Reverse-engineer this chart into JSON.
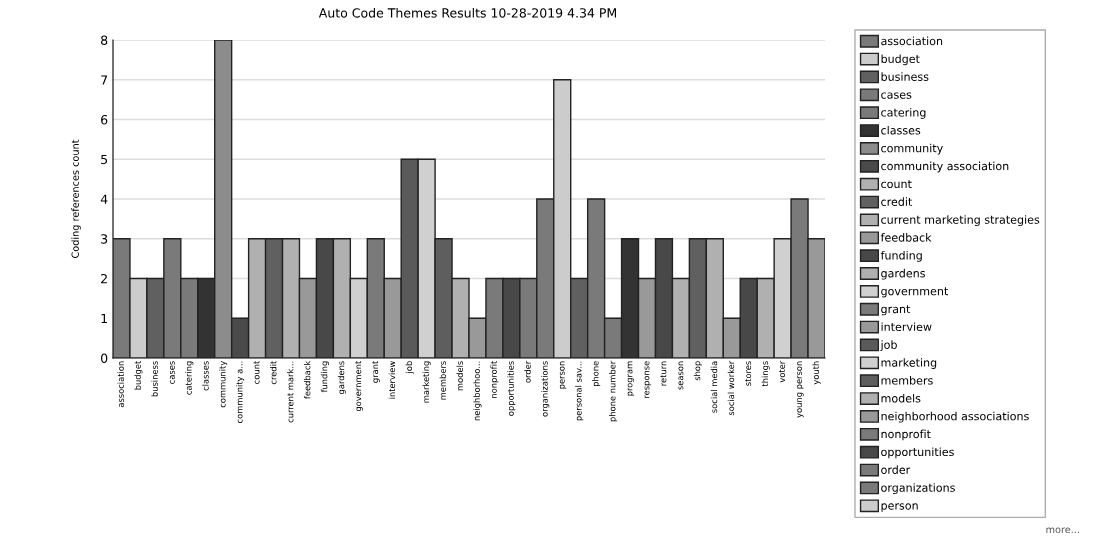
{
  "chart_data": {
    "type": "bar",
    "title": "Auto Code Themes Results 10-28-2019 4.34 PM",
    "ylabel": "Coding references count",
    "categories": [
      "association",
      "budget",
      "business",
      "cases",
      "catering",
      "classes",
      "community",
      "community a...",
      "count",
      "credit",
      "current mark...",
      "feedback",
      "funding",
      "gardens",
      "government",
      "grant",
      "interview",
      "job",
      "marketing",
      "members",
      "models",
      "neighborhoo...",
      "nonprofit",
      "opportunities",
      "order",
      "organizations",
      "person",
      "personal sav...",
      "phone",
      "phone number",
      "program",
      "response",
      "return",
      "season",
      "shop",
      "social media",
      "social worker",
      "stores",
      "things",
      "voter",
      "young person",
      "youth"
    ],
    "series": [
      {
        "name": "association",
        "color": "#7a7a7a",
        "values": [
          3,
          null,
          null,
          null,
          null,
          null,
          null,
          null,
          null,
          null,
          null,
          null,
          null,
          null,
          null,
          null,
          null,
          null,
          null,
          null,
          null,
          null,
          null,
          null,
          null,
          null,
          null,
          null,
          null,
          null,
          null,
          null,
          null,
          null,
          null,
          null,
          null,
          null,
          null,
          null,
          null,
          null
        ]
      },
      {
        "name": "budget",
        "color": "#cccccc",
        "values": [
          null,
          2,
          null,
          null,
          null,
          null,
          null,
          null,
          null,
          null,
          null,
          null,
          null,
          null,
          null,
          null,
          null,
          null,
          null,
          null,
          null,
          null,
          null,
          null,
          null,
          null,
          null,
          null,
          null,
          null,
          null,
          null,
          null,
          null,
          null,
          null,
          null,
          null,
          null,
          null,
          null,
          null
        ]
      },
      {
        "name": "business",
        "color": "#606060",
        "values": [
          null,
          null,
          2,
          null,
          null,
          null,
          null,
          null,
          null,
          null,
          null,
          null,
          null,
          null,
          null,
          null,
          null,
          null,
          null,
          null,
          null,
          null,
          null,
          null,
          null,
          null,
          null,
          null,
          null,
          null,
          null,
          null,
          null,
          null,
          null,
          null,
          null,
          null,
          null,
          null,
          null,
          null
        ]
      },
      {
        "name": "cases",
        "color": "#7a7a7a",
        "values": [
          null,
          null,
          null,
          3,
          null,
          null,
          null,
          null,
          null,
          null,
          null,
          null,
          null,
          null,
          null,
          null,
          null,
          null,
          null,
          null,
          null,
          null,
          null,
          null,
          null,
          null,
          null,
          null,
          null,
          null,
          null,
          null,
          null,
          null,
          null,
          null,
          null,
          null,
          null,
          null,
          null,
          null
        ]
      },
      {
        "name": "catering",
        "color": "#7a7a7a",
        "values": [
          null,
          null,
          null,
          null,
          2,
          null,
          null,
          null,
          null,
          null,
          null,
          null,
          null,
          null,
          null,
          null,
          null,
          null,
          null,
          null,
          null,
          null,
          null,
          null,
          null,
          null,
          null,
          null,
          null,
          null,
          null,
          null,
          null,
          null,
          null,
          null,
          null,
          null,
          null,
          null,
          null,
          null
        ]
      },
      {
        "name": "classes",
        "color": "#333333",
        "values": [
          null,
          null,
          null,
          null,
          null,
          2,
          null,
          null,
          null,
          null,
          null,
          null,
          null,
          null,
          null,
          null,
          null,
          null,
          null,
          null,
          null,
          null,
          null,
          null,
          null,
          null,
          null,
          null,
          null,
          null,
          null,
          null,
          null,
          null,
          null,
          null,
          null,
          null,
          null,
          null,
          null,
          null
        ]
      },
      {
        "name": "community",
        "color": "#8c8c8c",
        "values": [
          null,
          null,
          null,
          null,
          null,
          null,
          8,
          null,
          null,
          null,
          null,
          null,
          null,
          null,
          null,
          null,
          null,
          null,
          null,
          null,
          null,
          null,
          null,
          null,
          null,
          null,
          null,
          null,
          null,
          null,
          null,
          null,
          null,
          null,
          null,
          null,
          null,
          null,
          null,
          null,
          null,
          null
        ]
      },
      {
        "name": "community association",
        "color": "#4a4a4a",
        "values": [
          null,
          null,
          null,
          null,
          null,
          null,
          null,
          1,
          null,
          null,
          null,
          null,
          null,
          null,
          null,
          null,
          null,
          null,
          null,
          null,
          null,
          null,
          null,
          null,
          null,
          null,
          null,
          null,
          null,
          null,
          null,
          null,
          null,
          null,
          null,
          null,
          null,
          null,
          null,
          null,
          null,
          null
        ]
      },
      {
        "name": "count",
        "color": "#b0b0b0",
        "values": [
          null,
          null,
          null,
          null,
          null,
          null,
          null,
          null,
          3,
          null,
          null,
          null,
          null,
          null,
          null,
          null,
          null,
          null,
          null,
          null,
          null,
          null,
          null,
          null,
          null,
          null,
          null,
          null,
          null,
          null,
          null,
          null,
          null,
          null,
          null,
          null,
          null,
          null,
          null,
          null,
          null,
          null
        ]
      },
      {
        "name": "credit",
        "color": "#606060",
        "values": [
          null,
          null,
          null,
          null,
          null,
          null,
          null,
          null,
          null,
          3,
          null,
          null,
          null,
          null,
          null,
          null,
          null,
          null,
          null,
          null,
          null,
          null,
          null,
          null,
          null,
          null,
          null,
          null,
          null,
          null,
          null,
          null,
          null,
          null,
          null,
          null,
          null,
          null,
          null,
          null,
          null,
          null
        ]
      },
      {
        "name": "current marketing strategies",
        "color": "#b0b0b0",
        "values": [
          null,
          null,
          null,
          null,
          null,
          null,
          null,
          null,
          null,
          null,
          3,
          null,
          null,
          null,
          null,
          null,
          null,
          null,
          null,
          null,
          null,
          null,
          null,
          null,
          null,
          null,
          null,
          null,
          null,
          null,
          null,
          null,
          null,
          null,
          null,
          null,
          null,
          null,
          null,
          null,
          null,
          null
        ]
      },
      {
        "name": "feedback",
        "color": "#999999",
        "values": [
          null,
          null,
          null,
          null,
          null,
          null,
          null,
          null,
          null,
          null,
          null,
          2,
          null,
          null,
          null,
          null,
          null,
          null,
          null,
          null,
          null,
          null,
          null,
          null,
          null,
          null,
          null,
          null,
          null,
          null,
          null,
          null,
          null,
          null,
          null,
          null,
          null,
          null,
          null,
          null,
          null,
          null
        ]
      },
      {
        "name": "funding",
        "color": "#484848",
        "values": [
          null,
          null,
          null,
          null,
          null,
          null,
          null,
          null,
          null,
          null,
          null,
          null,
          3,
          null,
          null,
          null,
          null,
          null,
          null,
          null,
          null,
          null,
          null,
          null,
          null,
          null,
          null,
          null,
          null,
          null,
          null,
          null,
          null,
          null,
          null,
          null,
          null,
          null,
          null,
          null,
          null,
          null
        ]
      },
      {
        "name": "gardens",
        "color": "#b0b0b0",
        "values": [
          null,
          null,
          null,
          null,
          null,
          null,
          null,
          null,
          null,
          null,
          null,
          null,
          null,
          3,
          null,
          null,
          null,
          null,
          null,
          null,
          null,
          null,
          null,
          null,
          null,
          null,
          null,
          null,
          null,
          null,
          null,
          null,
          null,
          null,
          null,
          null,
          null,
          null,
          null,
          null,
          null,
          null
        ]
      },
      {
        "name": "government",
        "color": "#d0d0d0",
        "values": [
          null,
          null,
          null,
          null,
          null,
          null,
          null,
          null,
          null,
          null,
          null,
          null,
          null,
          null,
          2,
          null,
          null,
          null,
          null,
          null,
          null,
          null,
          null,
          null,
          null,
          null,
          null,
          null,
          null,
          null,
          null,
          null,
          null,
          null,
          null,
          null,
          null,
          null,
          null,
          null,
          null,
          null
        ]
      },
      {
        "name": "grant",
        "color": "#7a7a7a",
        "values": [
          null,
          null,
          null,
          null,
          null,
          null,
          null,
          null,
          null,
          null,
          null,
          null,
          null,
          null,
          null,
          3,
          null,
          null,
          null,
          null,
          null,
          null,
          null,
          null,
          null,
          null,
          null,
          null,
          null,
          null,
          null,
          null,
          null,
          null,
          null,
          null,
          null,
          null,
          null,
          null,
          null,
          null
        ]
      },
      {
        "name": "interview",
        "color": "#999999",
        "values": [
          null,
          null,
          null,
          null,
          null,
          null,
          null,
          null,
          null,
          null,
          null,
          null,
          null,
          null,
          null,
          null,
          2,
          null,
          null,
          null,
          null,
          null,
          null,
          null,
          null,
          null,
          null,
          null,
          null,
          null,
          null,
          null,
          null,
          null,
          null,
          null,
          null,
          null,
          null,
          null,
          null,
          null
        ]
      },
      {
        "name": "job",
        "color": "#5a5a5a",
        "values": [
          null,
          null,
          null,
          null,
          null,
          null,
          null,
          null,
          null,
          null,
          null,
          null,
          null,
          null,
          null,
          null,
          null,
          5,
          null,
          null,
          null,
          null,
          null,
          null,
          null,
          null,
          null,
          null,
          null,
          null,
          null,
          null,
          null,
          null,
          null,
          null,
          null,
          null,
          null,
          null,
          null,
          null
        ]
      },
      {
        "name": "marketing",
        "color": "#d0d0d0",
        "values": [
          null,
          null,
          null,
          null,
          null,
          null,
          null,
          null,
          null,
          null,
          null,
          null,
          null,
          null,
          null,
          null,
          null,
          null,
          5,
          null,
          null,
          null,
          null,
          null,
          null,
          null,
          null,
          null,
          null,
          null,
          null,
          null,
          null,
          null,
          null,
          null,
          null,
          null,
          null,
          null,
          null,
          null
        ]
      },
      {
        "name": "members",
        "color": "#5e5e5e",
        "values": [
          null,
          null,
          null,
          null,
          null,
          null,
          null,
          null,
          null,
          null,
          null,
          null,
          null,
          null,
          null,
          null,
          null,
          null,
          null,
          3,
          null,
          null,
          null,
          null,
          null,
          null,
          null,
          null,
          null,
          null,
          null,
          null,
          null,
          null,
          null,
          null,
          null,
          null,
          null,
          null,
          null,
          null
        ]
      },
      {
        "name": "models",
        "color": "#b0b0b0",
        "values": [
          null,
          null,
          null,
          null,
          null,
          null,
          null,
          null,
          null,
          null,
          null,
          null,
          null,
          null,
          null,
          null,
          null,
          null,
          null,
          null,
          2,
          null,
          null,
          null,
          null,
          null,
          null,
          null,
          null,
          null,
          null,
          null,
          null,
          null,
          null,
          null,
          null,
          null,
          null,
          null,
          null,
          null
        ]
      },
      {
        "name": "neighborhood associations",
        "color": "#999999",
        "values": [
          null,
          null,
          null,
          null,
          null,
          null,
          null,
          null,
          null,
          null,
          null,
          null,
          null,
          null,
          null,
          null,
          null,
          null,
          null,
          null,
          null,
          1,
          null,
          null,
          null,
          null,
          null,
          null,
          null,
          null,
          null,
          null,
          null,
          null,
          null,
          null,
          null,
          null,
          null,
          null,
          null,
          null
        ]
      },
      {
        "name": "nonprofit",
        "color": "#7a7a7a",
        "values": [
          null,
          null,
          null,
          null,
          null,
          null,
          null,
          null,
          null,
          null,
          null,
          null,
          null,
          null,
          null,
          null,
          null,
          null,
          null,
          null,
          null,
          null,
          2,
          null,
          null,
          null,
          null,
          null,
          null,
          null,
          null,
          null,
          null,
          null,
          null,
          null,
          null,
          null,
          null,
          null,
          null,
          null
        ]
      },
      {
        "name": "opportunities",
        "color": "#484848",
        "values": [
          null,
          null,
          null,
          null,
          null,
          null,
          null,
          null,
          null,
          null,
          null,
          null,
          null,
          null,
          null,
          null,
          null,
          null,
          null,
          null,
          null,
          null,
          null,
          2,
          null,
          null,
          null,
          null,
          null,
          null,
          null,
          null,
          null,
          null,
          null,
          null,
          null,
          null,
          null,
          null,
          null,
          null
        ]
      },
      {
        "name": "order",
        "color": "#7a7a7a",
        "values": [
          null,
          null,
          null,
          null,
          null,
          null,
          null,
          null,
          null,
          null,
          null,
          null,
          null,
          null,
          null,
          null,
          null,
          null,
          null,
          null,
          null,
          null,
          null,
          null,
          2,
          null,
          null,
          null,
          null,
          null,
          null,
          null,
          null,
          null,
          null,
          null,
          null,
          null,
          null,
          null,
          null,
          null
        ]
      },
      {
        "name": "organizations",
        "color": "#7a7a7a",
        "values": [
          null,
          null,
          null,
          null,
          null,
          null,
          null,
          null,
          null,
          null,
          null,
          null,
          null,
          null,
          null,
          null,
          null,
          null,
          null,
          null,
          null,
          null,
          null,
          null,
          null,
          4,
          null,
          null,
          null,
          null,
          null,
          null,
          null,
          null,
          null,
          null,
          null,
          null,
          null,
          null,
          null,
          null
        ]
      },
      {
        "name": "person",
        "color": "#cccccc",
        "values": [
          null,
          null,
          null,
          null,
          null,
          null,
          null,
          null,
          null,
          null,
          null,
          null,
          null,
          null,
          null,
          null,
          null,
          null,
          null,
          null,
          null,
          null,
          null,
          null,
          null,
          null,
          7,
          null,
          null,
          null,
          null,
          null,
          null,
          null,
          null,
          null,
          null,
          null,
          null,
          null,
          null,
          null
        ]
      },
      {
        "color": "#606060",
        "values": [
          null,
          null,
          null,
          null,
          null,
          null,
          null,
          null,
          null,
          null,
          null,
          null,
          null,
          null,
          null,
          null,
          null,
          null,
          null,
          null,
          null,
          null,
          null,
          null,
          null,
          null,
          null,
          2,
          null,
          null,
          null,
          null,
          null,
          null,
          null,
          null,
          null,
          null,
          null,
          null,
          null,
          null
        ]
      },
      {
        "color": "#7a7a7a",
        "values": [
          null,
          null,
          null,
          null,
          null,
          null,
          null,
          null,
          null,
          null,
          null,
          null,
          null,
          null,
          null,
          null,
          null,
          null,
          null,
          null,
          null,
          null,
          null,
          null,
          null,
          null,
          null,
          null,
          4,
          null,
          null,
          null,
          null,
          null,
          null,
          null,
          null,
          null,
          null,
          null,
          null,
          null
        ]
      },
      {
        "color": "#7a7a7a",
        "values": [
          null,
          null,
          null,
          null,
          null,
          null,
          null,
          null,
          null,
          null,
          null,
          null,
          null,
          null,
          null,
          null,
          null,
          null,
          null,
          null,
          null,
          null,
          null,
          null,
          null,
          null,
          null,
          null,
          null,
          1,
          null,
          null,
          null,
          null,
          null,
          null,
          null,
          null,
          null,
          null,
          null,
          null
        ]
      },
      {
        "color": "#333333",
        "values": [
          null,
          null,
          null,
          null,
          null,
          null,
          null,
          null,
          null,
          null,
          null,
          null,
          null,
          null,
          null,
          null,
          null,
          null,
          null,
          null,
          null,
          null,
          null,
          null,
          null,
          null,
          null,
          null,
          null,
          null,
          3,
          null,
          null,
          null,
          null,
          null,
          null,
          null,
          null,
          null,
          null,
          null
        ]
      },
      {
        "color": "#999999",
        "values": [
          null,
          null,
          null,
          null,
          null,
          null,
          null,
          null,
          null,
          null,
          null,
          null,
          null,
          null,
          null,
          null,
          null,
          null,
          null,
          null,
          null,
          null,
          null,
          null,
          null,
          null,
          null,
          null,
          null,
          null,
          null,
          2,
          null,
          null,
          null,
          null,
          null,
          null,
          null,
          null,
          null,
          null
        ]
      },
      {
        "color": "#484848",
        "values": [
          null,
          null,
          null,
          null,
          null,
          null,
          null,
          null,
          null,
          null,
          null,
          null,
          null,
          null,
          null,
          null,
          null,
          null,
          null,
          null,
          null,
          null,
          null,
          null,
          null,
          null,
          null,
          null,
          null,
          null,
          null,
          null,
          3,
          null,
          null,
          null,
          null,
          null,
          null,
          null,
          null,
          null
        ]
      },
      {
        "color": "#b0b0b0",
        "values": [
          null,
          null,
          null,
          null,
          null,
          null,
          null,
          null,
          null,
          null,
          null,
          null,
          null,
          null,
          null,
          null,
          null,
          null,
          null,
          null,
          null,
          null,
          null,
          null,
          null,
          null,
          null,
          null,
          null,
          null,
          null,
          null,
          null,
          2,
          null,
          null,
          null,
          null,
          null,
          null,
          null,
          null
        ]
      },
      {
        "color": "#606060",
        "values": [
          null,
          null,
          null,
          null,
          null,
          null,
          null,
          null,
          null,
          null,
          null,
          null,
          null,
          null,
          null,
          null,
          null,
          null,
          null,
          null,
          null,
          null,
          null,
          null,
          null,
          null,
          null,
          null,
          null,
          null,
          null,
          null,
          null,
          null,
          3,
          null,
          null,
          null,
          null,
          null,
          null,
          null
        ]
      },
      {
        "color": "#b0b0b0",
        "values": [
          null,
          null,
          null,
          null,
          null,
          null,
          null,
          null,
          null,
          null,
          null,
          null,
          null,
          null,
          null,
          null,
          null,
          null,
          null,
          null,
          null,
          null,
          null,
          null,
          null,
          null,
          null,
          null,
          null,
          null,
          null,
          null,
          null,
          null,
          null,
          3,
          null,
          null,
          null,
          null,
          null,
          null
        ]
      },
      {
        "color": "#999999",
        "values": [
          null,
          null,
          null,
          null,
          null,
          null,
          null,
          null,
          null,
          null,
          null,
          null,
          null,
          null,
          null,
          null,
          null,
          null,
          null,
          null,
          null,
          null,
          null,
          null,
          null,
          null,
          null,
          null,
          null,
          null,
          null,
          null,
          null,
          null,
          null,
          null,
          1,
          null,
          null,
          null,
          null,
          null
        ]
      },
      {
        "color": "#484848",
        "values": [
          null,
          null,
          null,
          null,
          null,
          null,
          null,
          null,
          null,
          null,
          null,
          null,
          null,
          null,
          null,
          null,
          null,
          null,
          null,
          null,
          null,
          null,
          null,
          null,
          null,
          null,
          null,
          null,
          null,
          null,
          null,
          null,
          null,
          null,
          null,
          null,
          null,
          2,
          null,
          null,
          null,
          null
        ]
      },
      {
        "color": "#b0b0b0",
        "values": [
          null,
          null,
          null,
          null,
          null,
          null,
          null,
          null,
          null,
          null,
          null,
          null,
          null,
          null,
          null,
          null,
          null,
          null,
          null,
          null,
          null,
          null,
          null,
          null,
          null,
          null,
          null,
          null,
          null,
          null,
          null,
          null,
          null,
          null,
          null,
          null,
          null,
          null,
          2,
          null,
          null,
          null
        ]
      },
      {
        "color": "#d0d0d0",
        "values": [
          null,
          null,
          null,
          null,
          null,
          null,
          null,
          null,
          null,
          null,
          null,
          null,
          null,
          null,
          null,
          null,
          null,
          null,
          null,
          null,
          null,
          null,
          null,
          null,
          null,
          null,
          null,
          null,
          null,
          null,
          null,
          null,
          null,
          null,
          null,
          null,
          null,
          null,
          null,
          3,
          null,
          null
        ]
      },
      {
        "color": "#7a7a7a",
        "values": [
          null,
          null,
          null,
          null,
          null,
          null,
          null,
          null,
          null,
          null,
          null,
          null,
          null,
          null,
          null,
          null,
          null,
          null,
          null,
          null,
          null,
          null,
          null,
          null,
          null,
          null,
          null,
          null,
          null,
          null,
          null,
          null,
          null,
          null,
          null,
          null,
          null,
          null,
          null,
          null,
          4,
          null
        ]
      },
      {
        "color": "#999999",
        "values": [
          null,
          null,
          null,
          null,
          null,
          null,
          null,
          null,
          null,
          null,
          null,
          null,
          null,
          null,
          null,
          null,
          null,
          null,
          null,
          null,
          null,
          null,
          null,
          null,
          null,
          null,
          null,
          null,
          null,
          null,
          null,
          null,
          null,
          null,
          null,
          null,
          null,
          null,
          null,
          null,
          null,
          3
        ]
      }
    ],
    "ylim": [
      0,
      8
    ],
    "yticks": [
      0,
      1,
      2,
      3,
      4,
      5,
      6,
      7,
      8
    ],
    "grid": "y",
    "legend": "right",
    "annotations": [
      "more..."
    ]
  }
}
